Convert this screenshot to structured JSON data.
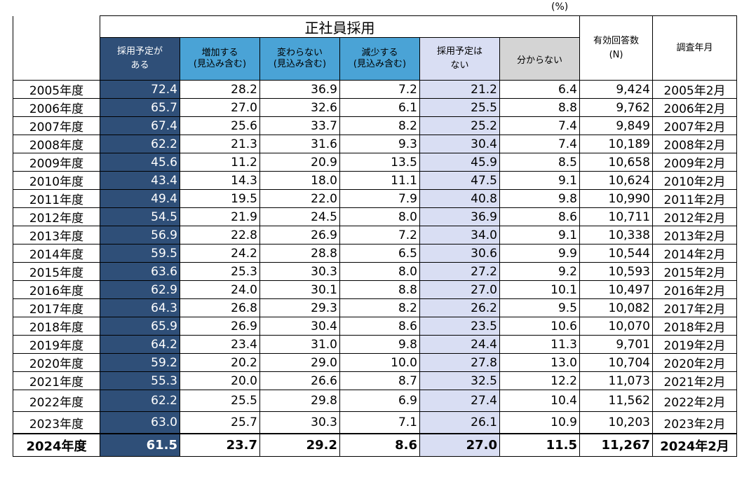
{
  "unit_label": "(%)",
  "header": {
    "group_title": "正社員採用",
    "planned_line1": "採用予定が",
    "planned_line2": "ある",
    "increase_line1": "増加する",
    "increase_line2": "(見込み含む)",
    "same_line1": "変わらない",
    "same_line2": "(見込み含む)",
    "decrease_line1": "減少する",
    "decrease_line2": "(見込み含む)",
    "none_line1": "採用予定は",
    "none_line2": "ない",
    "unknown": "分からない",
    "valid_line1": "有効回答数",
    "valid_line2": "(N)",
    "survey": "調査年月"
  },
  "rows": [
    {
      "year": "2005年度",
      "planned": "72.4",
      "increase": "28.2",
      "same": "36.9",
      "decrease": "7.2",
      "none": "21.2",
      "unknown": "6.4",
      "n": "9,424",
      "survey": "2005年2月"
    },
    {
      "year": "2006年度",
      "planned": "65.7",
      "increase": "27.0",
      "same": "32.6",
      "decrease": "6.1",
      "none": "25.5",
      "unknown": "8.8",
      "n": "9,762",
      "survey": "2006年2月"
    },
    {
      "year": "2007年度",
      "planned": "67.4",
      "increase": "25.6",
      "same": "33.7",
      "decrease": "8.2",
      "none": "25.2",
      "unknown": "7.4",
      "n": "9,849",
      "survey": "2007年2月"
    },
    {
      "year": "2008年度",
      "planned": "62.2",
      "increase": "21.3",
      "same": "31.6",
      "decrease": "9.3",
      "none": "30.4",
      "unknown": "7.4",
      "n": "10,189",
      "survey": "2008年2月"
    },
    {
      "year": "2009年度",
      "planned": "45.6",
      "increase": "11.2",
      "same": "20.9",
      "decrease": "13.5",
      "none": "45.9",
      "unknown": "8.5",
      "n": "10,658",
      "survey": "2009年2月"
    },
    {
      "year": "2010年度",
      "planned": "43.4",
      "increase": "14.3",
      "same": "18.0",
      "decrease": "11.1",
      "none": "47.5",
      "unknown": "9.1",
      "n": "10,624",
      "survey": "2010年2月"
    },
    {
      "year": "2011年度",
      "planned": "49.4",
      "increase": "19.5",
      "same": "22.0",
      "decrease": "7.9",
      "none": "40.8",
      "unknown": "9.8",
      "n": "10,990",
      "survey": "2011年2月"
    },
    {
      "year": "2012年度",
      "planned": "54.5",
      "increase": "21.9",
      "same": "24.5",
      "decrease": "8.0",
      "none": "36.9",
      "unknown": "8.6",
      "n": "10,711",
      "survey": "2012年2月"
    },
    {
      "year": "2013年度",
      "planned": "56.9",
      "increase": "22.8",
      "same": "26.9",
      "decrease": "7.2",
      "none": "34.0",
      "unknown": "9.1",
      "n": "10,338",
      "survey": "2013年2月"
    },
    {
      "year": "2014年度",
      "planned": "59.5",
      "increase": "24.2",
      "same": "28.8",
      "decrease": "6.5",
      "none": "30.6",
      "unknown": "9.9",
      "n": "10,544",
      "survey": "2014年2月"
    },
    {
      "year": "2015年度",
      "planned": "63.6",
      "increase": "25.3",
      "same": "30.3",
      "decrease": "8.0",
      "none": "27.2",
      "unknown": "9.2",
      "n": "10,593",
      "survey": "2015年2月"
    },
    {
      "year": "2016年度",
      "planned": "62.9",
      "increase": "24.0",
      "same": "30.1",
      "decrease": "8.8",
      "none": "27.0",
      "unknown": "10.1",
      "n": "10,497",
      "survey": "2016年2月"
    },
    {
      "year": "2017年度",
      "planned": "64.3",
      "increase": "26.8",
      "same": "29.3",
      "decrease": "8.2",
      "none": "26.2",
      "unknown": "9.5",
      "n": "10,082",
      "survey": "2017年2月"
    },
    {
      "year": "2018年度",
      "planned": "65.9",
      "increase": "26.9",
      "same": "30.4",
      "decrease": "8.6",
      "none": "23.5",
      "unknown": "10.6",
      "n": "10,070",
      "survey": "2018年2月"
    },
    {
      "year": "2019年度",
      "planned": "64.2",
      "increase": "23.4",
      "same": "31.0",
      "decrease": "9.8",
      "none": "24.4",
      "unknown": "11.3",
      "n": "9,701",
      "survey": "2019年2月"
    },
    {
      "year": "2020年度",
      "planned": "59.2",
      "increase": "20.2",
      "same": "29.0",
      "decrease": "10.0",
      "none": "27.8",
      "unknown": "13.0",
      "n": "10,704",
      "survey": "2020年2月"
    },
    {
      "year": "2021年度",
      "planned": "55.3",
      "increase": "20.0",
      "same": "26.6",
      "decrease": "8.7",
      "none": "32.5",
      "unknown": "12.2",
      "n": "11,073",
      "survey": "2021年2月"
    },
    {
      "year": "2022年度",
      "planned": "62.2",
      "increase": "25.5",
      "same": "29.8",
      "decrease": "6.9",
      "none": "27.4",
      "unknown": "10.4",
      "n": "11,562",
      "survey": "2022年2月"
    },
    {
      "year": "2023年度",
      "planned": "63.0",
      "increase": "25.7",
      "same": "30.3",
      "decrease": "7.1",
      "none": "26.1",
      "unknown": "10.9",
      "n": "10,203",
      "survey": "2023年2月"
    },
    {
      "year": "2024年度",
      "planned": "61.5",
      "increase": "23.7",
      "same": "29.2",
      "decrease": "8.6",
      "none": "27.0",
      "unknown": "11.5",
      "n": "11,267",
      "survey": "2024年2月"
    }
  ]
}
